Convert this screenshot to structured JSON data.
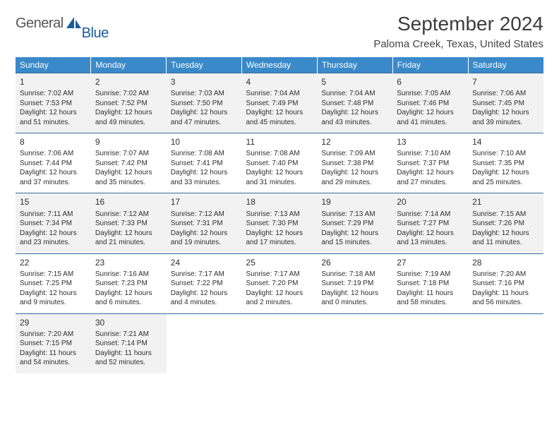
{
  "logo": {
    "part1": "General",
    "part2": "Blue"
  },
  "title": "September 2024",
  "location": "Paloma Creek, Texas, United States",
  "weekdays": [
    "Sunday",
    "Monday",
    "Tuesday",
    "Wednesday",
    "Thursday",
    "Friday",
    "Saturday"
  ],
  "colors": {
    "header_bg": "#3a89c9",
    "row_alt_bg": "#f2f2f2",
    "border": "#3a6a9a",
    "logo_gray": "#555555",
    "logo_blue": "#1a5a9a"
  },
  "days": [
    {
      "n": "1",
      "sr": "7:02 AM",
      "ss": "7:53 PM",
      "dl": "12 hours and 51 minutes."
    },
    {
      "n": "2",
      "sr": "7:02 AM",
      "ss": "7:52 PM",
      "dl": "12 hours and 49 minutes."
    },
    {
      "n": "3",
      "sr": "7:03 AM",
      "ss": "7:50 PM",
      "dl": "12 hours and 47 minutes."
    },
    {
      "n": "4",
      "sr": "7:04 AM",
      "ss": "7:49 PM",
      "dl": "12 hours and 45 minutes."
    },
    {
      "n": "5",
      "sr": "7:04 AM",
      "ss": "7:48 PM",
      "dl": "12 hours and 43 minutes."
    },
    {
      "n": "6",
      "sr": "7:05 AM",
      "ss": "7:46 PM",
      "dl": "12 hours and 41 minutes."
    },
    {
      "n": "7",
      "sr": "7:06 AM",
      "ss": "7:45 PM",
      "dl": "12 hours and 39 minutes."
    },
    {
      "n": "8",
      "sr": "7:06 AM",
      "ss": "7:44 PM",
      "dl": "12 hours and 37 minutes."
    },
    {
      "n": "9",
      "sr": "7:07 AM",
      "ss": "7:42 PM",
      "dl": "12 hours and 35 minutes."
    },
    {
      "n": "10",
      "sr": "7:08 AM",
      "ss": "7:41 PM",
      "dl": "12 hours and 33 minutes."
    },
    {
      "n": "11",
      "sr": "7:08 AM",
      "ss": "7:40 PM",
      "dl": "12 hours and 31 minutes."
    },
    {
      "n": "12",
      "sr": "7:09 AM",
      "ss": "7:38 PM",
      "dl": "12 hours and 29 minutes."
    },
    {
      "n": "13",
      "sr": "7:10 AM",
      "ss": "7:37 PM",
      "dl": "12 hours and 27 minutes."
    },
    {
      "n": "14",
      "sr": "7:10 AM",
      "ss": "7:35 PM",
      "dl": "12 hours and 25 minutes."
    },
    {
      "n": "15",
      "sr": "7:11 AM",
      "ss": "7:34 PM",
      "dl": "12 hours and 23 minutes."
    },
    {
      "n": "16",
      "sr": "7:12 AM",
      "ss": "7:33 PM",
      "dl": "12 hours and 21 minutes."
    },
    {
      "n": "17",
      "sr": "7:12 AM",
      "ss": "7:31 PM",
      "dl": "12 hours and 19 minutes."
    },
    {
      "n": "18",
      "sr": "7:13 AM",
      "ss": "7:30 PM",
      "dl": "12 hours and 17 minutes."
    },
    {
      "n": "19",
      "sr": "7:13 AM",
      "ss": "7:29 PM",
      "dl": "12 hours and 15 minutes."
    },
    {
      "n": "20",
      "sr": "7:14 AM",
      "ss": "7:27 PM",
      "dl": "12 hours and 13 minutes."
    },
    {
      "n": "21",
      "sr": "7:15 AM",
      "ss": "7:26 PM",
      "dl": "12 hours and 11 minutes."
    },
    {
      "n": "22",
      "sr": "7:15 AM",
      "ss": "7:25 PM",
      "dl": "12 hours and 9 minutes."
    },
    {
      "n": "23",
      "sr": "7:16 AM",
      "ss": "7:23 PM",
      "dl": "12 hours and 6 minutes."
    },
    {
      "n": "24",
      "sr": "7:17 AM",
      "ss": "7:22 PM",
      "dl": "12 hours and 4 minutes."
    },
    {
      "n": "25",
      "sr": "7:17 AM",
      "ss": "7:20 PM",
      "dl": "12 hours and 2 minutes."
    },
    {
      "n": "26",
      "sr": "7:18 AM",
      "ss": "7:19 PM",
      "dl": "12 hours and 0 minutes."
    },
    {
      "n": "27",
      "sr": "7:19 AM",
      "ss": "7:18 PM",
      "dl": "11 hours and 58 minutes."
    },
    {
      "n": "28",
      "sr": "7:20 AM",
      "ss": "7:16 PM",
      "dl": "11 hours and 56 minutes."
    },
    {
      "n": "29",
      "sr": "7:20 AM",
      "ss": "7:15 PM",
      "dl": "11 hours and 54 minutes."
    },
    {
      "n": "30",
      "sr": "7:21 AM",
      "ss": "7:14 PM",
      "dl": "11 hours and 52 minutes."
    }
  ]
}
